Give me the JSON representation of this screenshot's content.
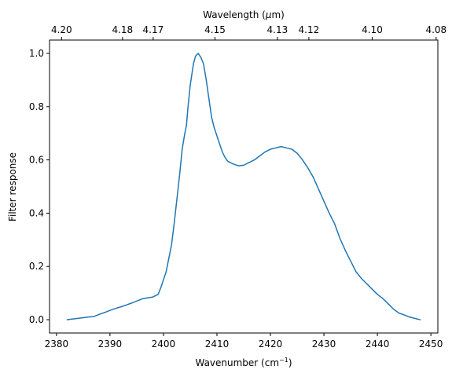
{
  "chart_data": {
    "type": "line",
    "title": "",
    "xlabel": "Wavenumber (cm",
    "xlabel_sup": "−1",
    "xlabel_close": ")",
    "ylabel": "Filter response",
    "top_xlabel": "Wavelength (",
    "top_xlabel_unit": "μ",
    "top_xlabel_close": "m)",
    "xlim": [
      2378.7,
      2451.3
    ],
    "ylim": [
      -0.05,
      1.05
    ],
    "grid": false,
    "x_ticks": [
      2380,
      2390,
      2400,
      2410,
      2420,
      2430,
      2440,
      2450
    ],
    "y_ticks": [
      0.0,
      0.2,
      0.4,
      0.6,
      0.8,
      1.0
    ],
    "y_tick_labels": [
      "0.0",
      "0.2",
      "0.4",
      "0.6",
      "0.8",
      "1.0"
    ],
    "top_ticks": [
      {
        "wavelength": 4.2,
        "label": "4.20"
      },
      {
        "wavelength": 4.18,
        "label": "4.18"
      },
      {
        "wavelength": 4.17,
        "label": "4.17"
      },
      {
        "wavelength": 4.15,
        "label": "4.15"
      },
      {
        "wavelength": 4.13,
        "label": "4.13"
      },
      {
        "wavelength": 4.12,
        "label": "4.12"
      },
      {
        "wavelength": 4.1,
        "label": "4.10"
      },
      {
        "wavelength": 4.08,
        "label": "4.08"
      }
    ],
    "series": [
      {
        "color": "#1f77b4",
        "x": [
          2382.0,
          2384.0,
          2386.0,
          2387.0,
          2388.0,
          2389.0,
          2390.0,
          2391.0,
          2392.0,
          2393.0,
          2394.0,
          2395.0,
          2396.0,
          2397.0,
          2398.0,
          2399.0,
          2399.5,
          2400.0,
          2400.5,
          2401.0,
          2401.5,
          2402.0,
          2402.5,
          2403.0,
          2403.5,
          2404.0,
          2404.3,
          2404.6,
          2405.0,
          2405.3,
          2405.6,
          2406.0,
          2406.5,
          2407.0,
          2407.5,
          2408.0,
          2408.5,
          2409.0,
          2409.5,
          2410.0,
          2410.5,
          2411.0,
          2411.5,
          2412.0,
          2413.0,
          2414.0,
          2415.0,
          2416.0,
          2417.0,
          2418.0,
          2419.0,
          2420.0,
          2421.0,
          2422.0,
          2423.0,
          2424.0,
          2425.0,
          2426.0,
          2427.0,
          2428.0,
          2429.0,
          2430.0,
          2431.0,
          2432.0,
          2433.0,
          2434.0,
          2435.0,
          2436.0,
          2437.0,
          2438.0,
          2439.0,
          2440.0,
          2441.0,
          2442.0,
          2443.0,
          2444.0,
          2445.0,
          2446.0,
          2447.0,
          2448.0
        ],
        "y": [
          0.0,
          0.005,
          0.01,
          0.012,
          0.02,
          0.027,
          0.035,
          0.042,
          0.048,
          0.055,
          0.062,
          0.07,
          0.078,
          0.082,
          0.085,
          0.095,
          0.12,
          0.15,
          0.18,
          0.23,
          0.28,
          0.36,
          0.45,
          0.54,
          0.64,
          0.7,
          0.73,
          0.8,
          0.88,
          0.92,
          0.96,
          0.99,
          1.0,
          0.985,
          0.96,
          0.9,
          0.83,
          0.76,
          0.72,
          0.69,
          0.66,
          0.63,
          0.61,
          0.595,
          0.585,
          0.578,
          0.58,
          0.59,
          0.6,
          0.615,
          0.63,
          0.64,
          0.645,
          0.65,
          0.645,
          0.64,
          0.625,
          0.6,
          0.57,
          0.535,
          0.49,
          0.445,
          0.4,
          0.36,
          0.305,
          0.26,
          0.22,
          0.18,
          0.155,
          0.135,
          0.115,
          0.095,
          0.08,
          0.06,
          0.04,
          0.025,
          0.018,
          0.01,
          0.005,
          0.0
        ]
      }
    ]
  }
}
